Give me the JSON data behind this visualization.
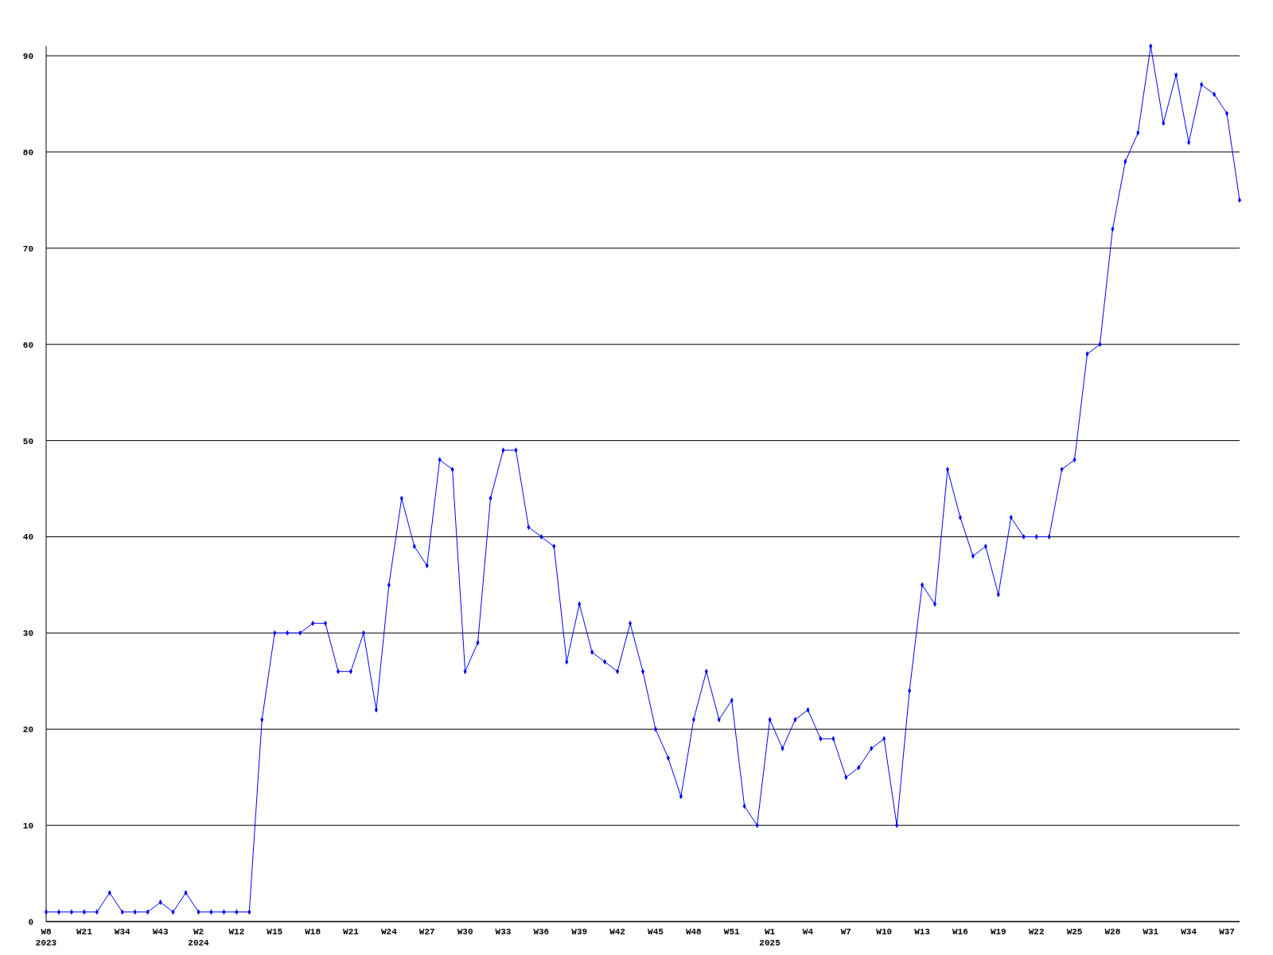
{
  "chart_data": {
    "type": "line",
    "categories": [
      "W8\n2023",
      null,
      null,
      "W21",
      null,
      null,
      "W34",
      null,
      null,
      "W43",
      null,
      null,
      "W2\n2024",
      null,
      null,
      "W12",
      null,
      null,
      "W15",
      null,
      null,
      "W18",
      null,
      null,
      "W21",
      null,
      null,
      "W24",
      null,
      null,
      "W27",
      null,
      null,
      "W30",
      null,
      null,
      "W33",
      null,
      null,
      "W36",
      null,
      null,
      "W39",
      null,
      null,
      "W42",
      null,
      null,
      "W45",
      null,
      null,
      "W48",
      null,
      null,
      "W51",
      null,
      null,
      "W1\n2025",
      null,
      null,
      "W4",
      null,
      null,
      "W7",
      null,
      null,
      "W10",
      null,
      null,
      "W13",
      null,
      null,
      "W16",
      null,
      null,
      "W19",
      null,
      null,
      "W22",
      null,
      null,
      "W25",
      null,
      null,
      "W28",
      null,
      null,
      "W31",
      null,
      null,
      "W34",
      null,
      null,
      "W37",
      null
    ],
    "series": [
      {
        "color": "#0000ff",
        "values": [
          1,
          1,
          1,
          1,
          1,
          3,
          1,
          1,
          1,
          2,
          1,
          3,
          1,
          1,
          1,
          1,
          1,
          21,
          30,
          30,
          30,
          31,
          31,
          26,
          26,
          30,
          22,
          35,
          44,
          39,
          37,
          48,
          47,
          26,
          29,
          44,
          49,
          49,
          41,
          40,
          39,
          27,
          33,
          28,
          27,
          26,
          31,
          26,
          20,
          17,
          13,
          21,
          26,
          21,
          23,
          12,
          10,
          21,
          18,
          21,
          22,
          19,
          19,
          15,
          16,
          18,
          19,
          10,
          24,
          35,
          33,
          47,
          42,
          38,
          39,
          34,
          42,
          40,
          40,
          40,
          47,
          48,
          59,
          60,
          72,
          79,
          82,
          91,
          83,
          88,
          81,
          87,
          86,
          84,
          75
        ]
      }
    ],
    "ylim": [
      0,
      91
    ],
    "yticks": [
      0,
      10,
      20,
      30,
      40,
      50,
      60,
      70,
      80,
      90
    ],
    "grid": "y",
    "marker": "diamond",
    "line_style": "solid"
  }
}
